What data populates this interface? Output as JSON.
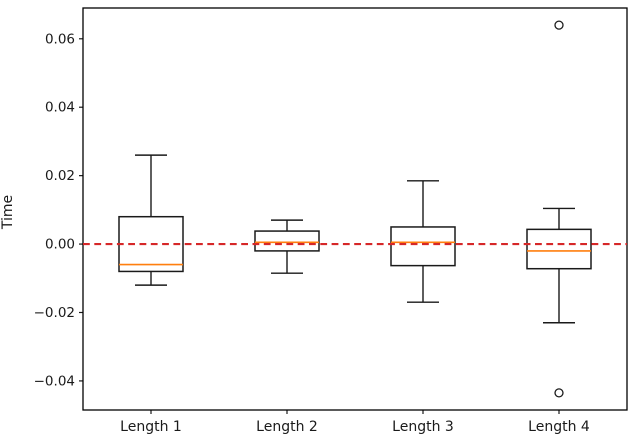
{
  "figure": {
    "background": "#ffffff",
    "text_color": "#1a1a1a"
  },
  "chart_data": {
    "type": "box",
    "title": "",
    "xlabel": "",
    "ylabel": "Time",
    "grid": false,
    "legend": null,
    "categories": [
      "Length 1",
      "Length 2",
      "Length 3",
      "Length 4"
    ],
    "ylim": [
      -0.0485,
      0.069
    ],
    "yticks": [
      0.06,
      0.04,
      0.02,
      0.0,
      -0.02,
      -0.04
    ],
    "ytick_labels": [
      "0.06",
      "0.04",
      "0.02",
      "0.00",
      "−0.02",
      "−0.04"
    ],
    "reference_line": {
      "y": 0.0,
      "color": "#d62728",
      "linestyle": "dashed"
    },
    "box_style": {
      "edge_color": "#1a1a1a",
      "median_color": "#ff7f0e",
      "outlier_marker": "open-circle"
    },
    "series": [
      {
        "category": "Length 1",
        "whisker_low": -0.012,
        "q1": -0.008,
        "median": -0.006,
        "q3": 0.008,
        "whisker_high": 0.026,
        "outliers": []
      },
      {
        "category": "Length 2",
        "whisker_low": -0.0085,
        "q1": -0.002,
        "median": 0.0005,
        "q3": 0.0038,
        "whisker_high": 0.007,
        "outliers": []
      },
      {
        "category": "Length 3",
        "whisker_low": -0.017,
        "q1": -0.0063,
        "median": 0.0005,
        "q3": 0.005,
        "whisker_high": 0.0185,
        "outliers": []
      },
      {
        "category": "Length 4",
        "whisker_low": -0.023,
        "q1": -0.0072,
        "median": -0.002,
        "q3": 0.0043,
        "whisker_high": 0.0104,
        "outliers": [
          0.064,
          -0.0435
        ]
      }
    ]
  }
}
